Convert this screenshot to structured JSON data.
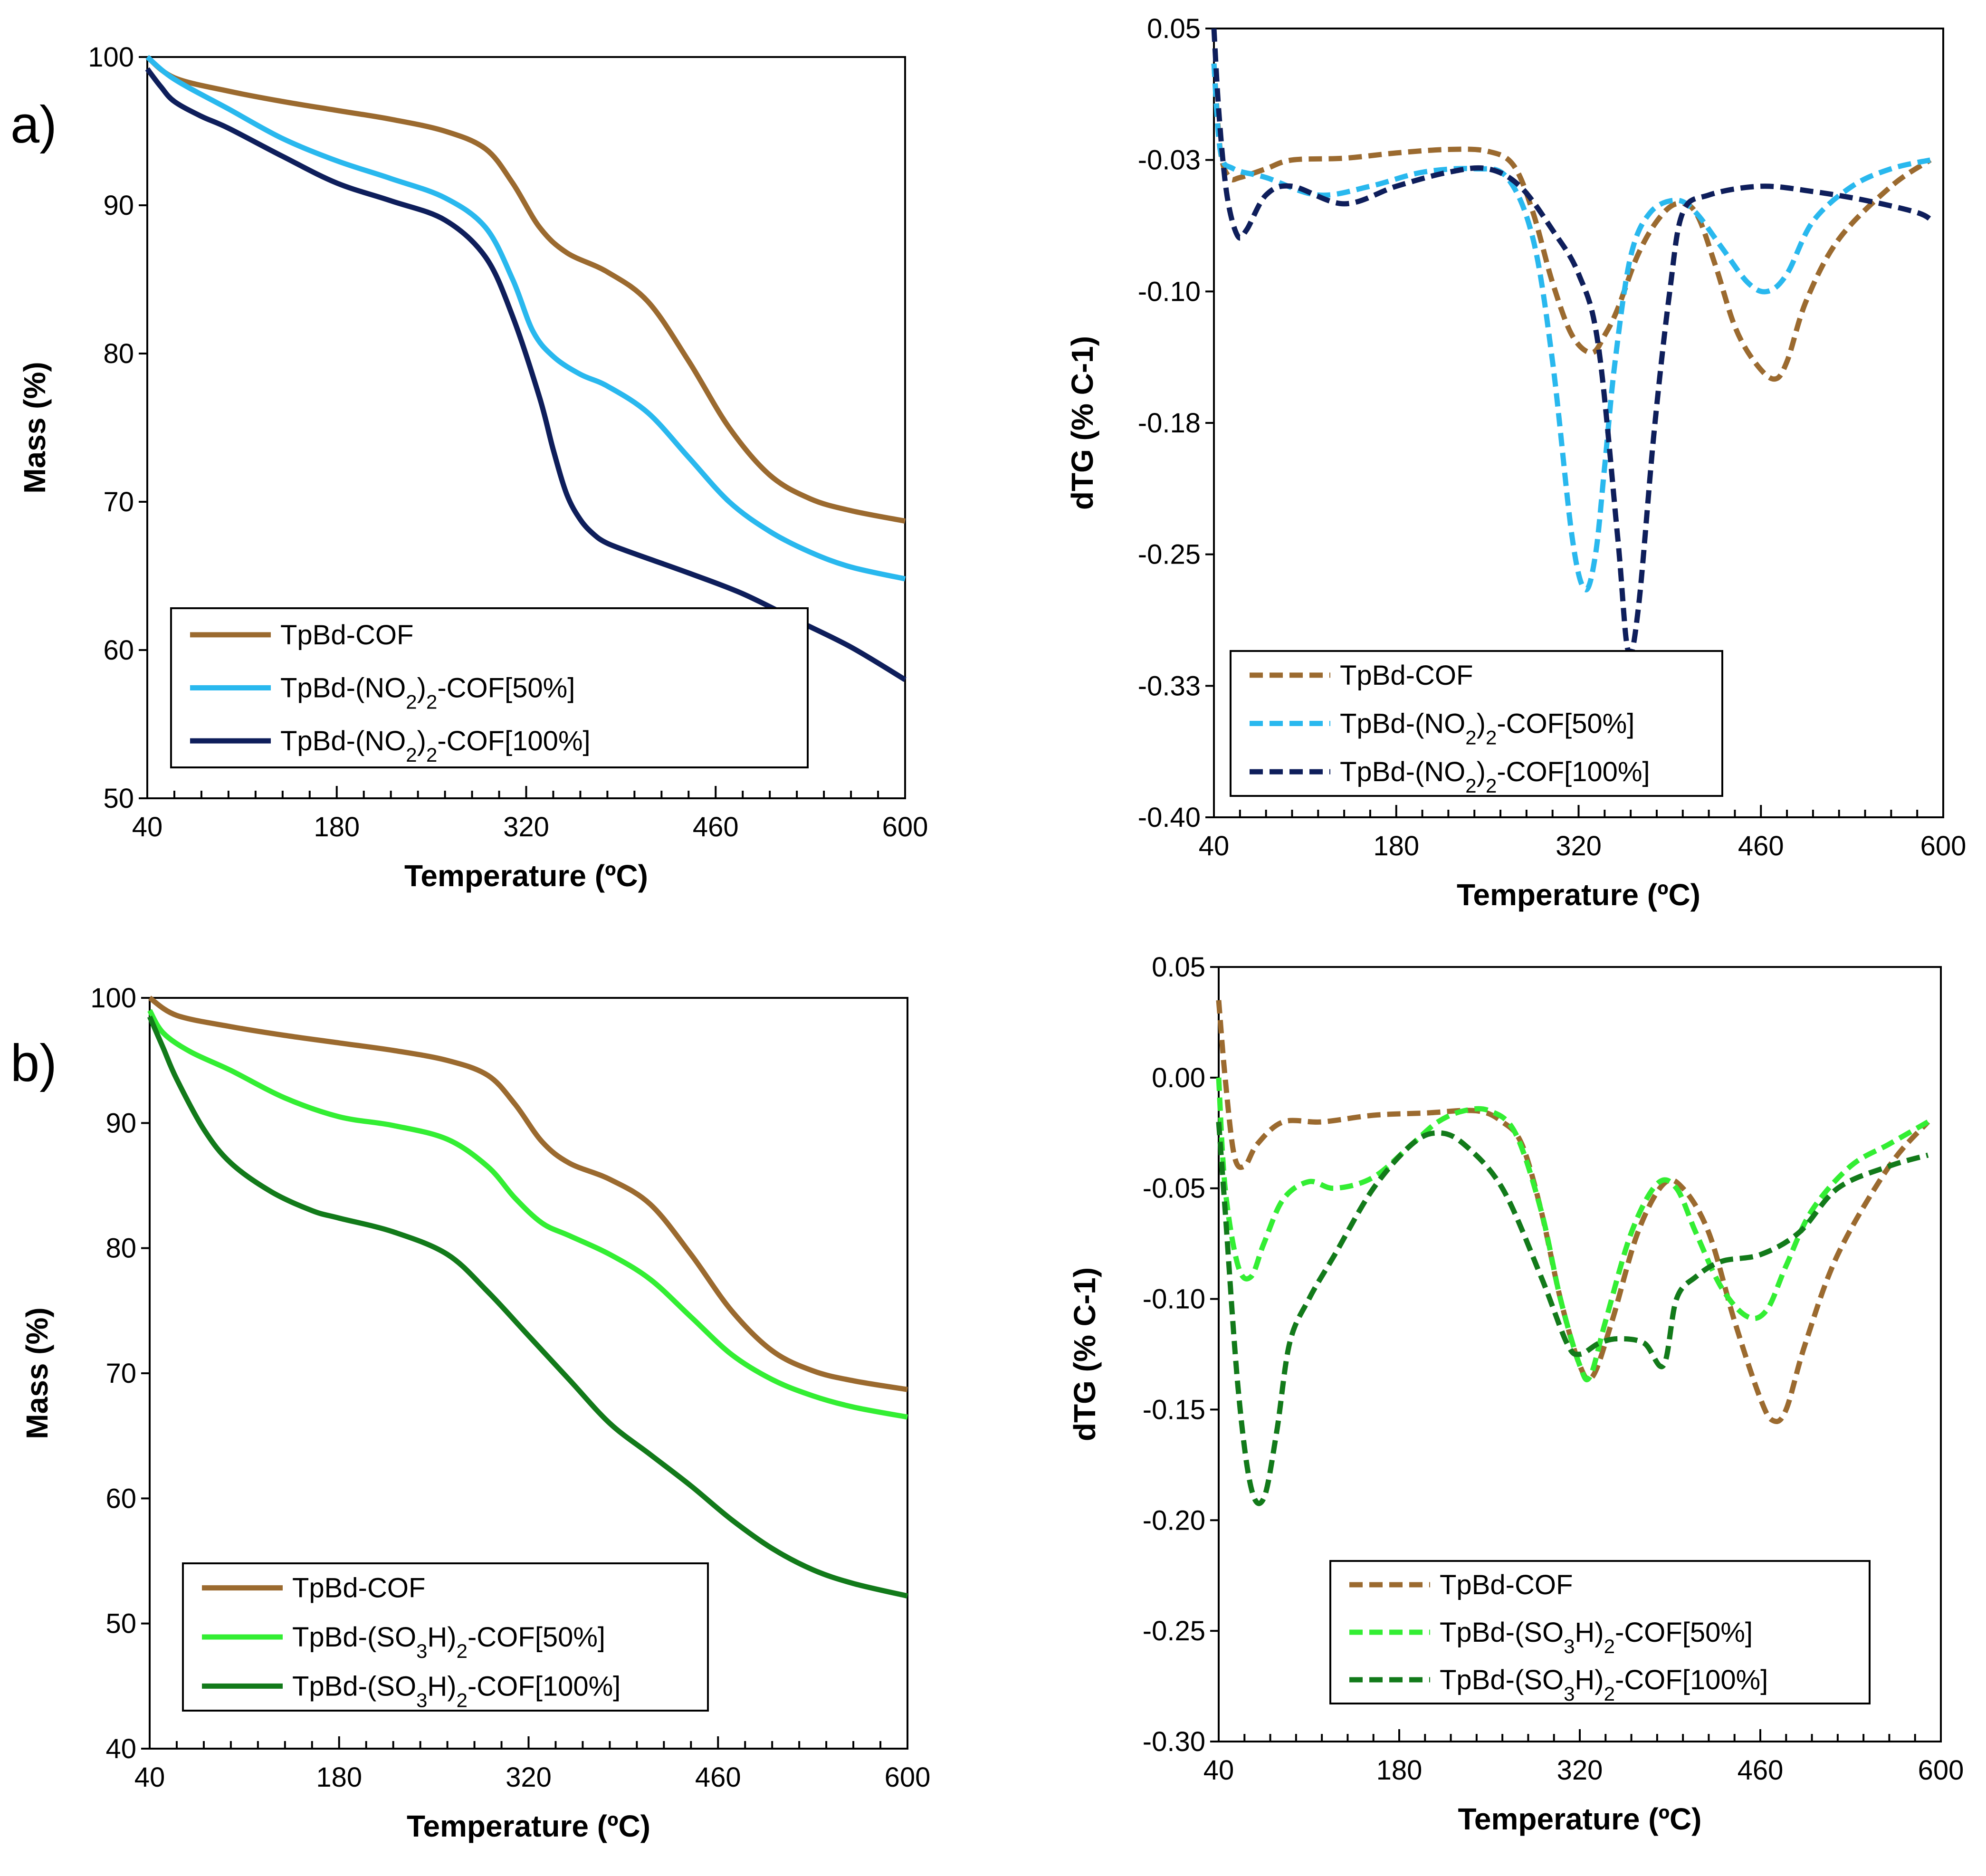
{
  "figure": {
    "panel_labels": [
      "a)",
      "b)"
    ]
  },
  "colors": {
    "tpbd": "#9B6A2F",
    "no2_50": "#29B8EE",
    "no2_100": "#0E1E5B",
    "so3h_50": "#33EE33",
    "so3h_100": "#127A1A"
  },
  "chart_data": [
    {
      "id": "a_tg",
      "type": "line",
      "style": "solid",
      "title": "",
      "xlabel": "Temperature (ºC)",
      "ylabel": "Mass (%)",
      "xlim": [
        40,
        600
      ],
      "ylim": [
        50,
        100
      ],
      "xticks": [
        40,
        180,
        320,
        460,
        600
      ],
      "yticks": [
        50,
        60,
        70,
        80,
        90,
        100
      ],
      "xtick_labels": [
        "40",
        "180",
        "320",
        "460",
        "600"
      ],
      "ytick_labels": [
        "50",
        "60",
        "70",
        "80",
        "90",
        "100"
      ],
      "legend_position": "bottom-left",
      "series": [
        {
          "name": "TpBd-COF",
          "color_key": "tpbd",
          "x": [
            40,
            60,
            100,
            140,
            180,
            220,
            260,
            290,
            310,
            330,
            350,
            380,
            410,
            440,
            470,
            500,
            530,
            560,
            600
          ],
          "y": [
            100,
            98.6,
            97.7,
            97.0,
            96.4,
            95.8,
            95.0,
            93.8,
            91.5,
            88.5,
            86.8,
            85.5,
            83.5,
            79.5,
            75.0,
            71.8,
            70.2,
            69.4,
            68.7
          ]
        },
        {
          "name": "TpBd-(NO₂)₂-COF[50%]",
          "color_key": "no2_50",
          "x": [
            40,
            60,
            100,
            140,
            180,
            220,
            260,
            290,
            310,
            325,
            340,
            360,
            380,
            410,
            440,
            470,
            500,
            530,
            560,
            600
          ],
          "y": [
            100,
            98.5,
            96.5,
            94.5,
            93.0,
            91.8,
            90.5,
            88.5,
            85.0,
            81.5,
            79.8,
            78.6,
            77.8,
            76.0,
            73.0,
            70.0,
            68.0,
            66.6,
            65.6,
            64.8
          ]
        },
        {
          "name": "TpBd-(NO₂)₂-COF[100%]",
          "color_key": "no2_100",
          "x": [
            40,
            50,
            60,
            80,
            100,
            140,
            180,
            220,
            260,
            290,
            310,
            330,
            340,
            350,
            360,
            370,
            380,
            400,
            440,
            480,
            520,
            560,
            600
          ],
          "y": [
            99.2,
            98.0,
            97.0,
            96.0,
            95.2,
            93.3,
            91.5,
            90.3,
            89.0,
            86.5,
            82.5,
            77.0,
            73.5,
            70.5,
            68.8,
            67.8,
            67.2,
            66.5,
            65.2,
            63.8,
            62.0,
            60.2,
            58.0
          ]
        }
      ]
    },
    {
      "id": "a_dtg",
      "type": "line",
      "style": "dashed",
      "title": "",
      "xlabel": "Temperature (ºC)",
      "ylabel": "dTG (% C-1)",
      "xlim": [
        40,
        600
      ],
      "ylim": [
        -0.4,
        0.05
      ],
      "xticks": [
        40,
        180,
        320,
        460,
        600
      ],
      "yticks": [
        -0.4,
        -0.325,
        -0.25,
        -0.175,
        -0.1,
        -0.025,
        0.05
      ],
      "xtick_labels": [
        "40",
        "180",
        "320",
        "460",
        "600"
      ],
      "ytick_labels": [
        "-0.40",
        "-0.33",
        "-0.25",
        "-0.18",
        "-0.10",
        "-0.03",
        "0.05"
      ],
      "legend_position": "bottom-left",
      "series": [
        {
          "name": "TpBd-COF",
          "color_key": "tpbd",
          "x": [
            40,
            45,
            52,
            60,
            80,
            100,
            140,
            180,
            220,
            250,
            270,
            285,
            300,
            315,
            330,
            340,
            350,
            365,
            380,
            395,
            410,
            425,
            440,
            455,
            470,
            480,
            495,
            520,
            560,
            590
          ],
          "y": [
            0.03,
            -0.02,
            -0.035,
            -0.035,
            -0.03,
            -0.025,
            -0.024,
            -0.021,
            -0.019,
            -0.02,
            -0.028,
            -0.055,
            -0.095,
            -0.125,
            -0.135,
            -0.125,
            -0.11,
            -0.08,
            -0.06,
            -0.05,
            -0.055,
            -0.085,
            -0.12,
            -0.14,
            -0.15,
            -0.14,
            -0.105,
            -0.07,
            -0.04,
            -0.025
          ]
        },
        {
          "name": "TpBd-(NO₂)₂-COF[50%]",
          "color_key": "no2_50",
          "x": [
            40,
            45,
            55,
            80,
            120,
            160,
            200,
            240,
            265,
            285,
            300,
            315,
            325,
            333,
            340,
            348,
            360,
            375,
            395,
            410,
            430,
            450,
            465,
            480,
            500,
            530,
            560,
            590
          ],
          "y": [
            0.03,
            -0.02,
            -0.03,
            -0.035,
            -0.045,
            -0.04,
            -0.032,
            -0.03,
            -0.035,
            -0.07,
            -0.14,
            -0.24,
            -0.27,
            -0.25,
            -0.2,
            -0.14,
            -0.08,
            -0.055,
            -0.048,
            -0.055,
            -0.075,
            -0.095,
            -0.1,
            -0.09,
            -0.06,
            -0.04,
            -0.03,
            -0.025
          ]
        },
        {
          "name": "TpBd-(NO₂)₂-COF[100%]",
          "color_key": "no2_100",
          "x": [
            40,
            44,
            50,
            58,
            65,
            80,
            100,
            140,
            180,
            220,
            250,
            275,
            300,
            320,
            335,
            350,
            358,
            366,
            378,
            390,
            400,
            420,
            460,
            500,
            540,
            580,
            592
          ],
          "y": [
            0.05,
            0.0,
            -0.045,
            -0.068,
            -0.065,
            -0.045,
            -0.04,
            -0.05,
            -0.04,
            -0.032,
            -0.03,
            -0.04,
            -0.065,
            -0.09,
            -0.13,
            -0.24,
            -0.305,
            -0.28,
            -0.18,
            -0.1,
            -0.055,
            -0.045,
            -0.04,
            -0.043,
            -0.048,
            -0.055,
            -0.06
          ]
        }
      ]
    },
    {
      "id": "b_tg",
      "type": "line",
      "style": "solid",
      "title": "",
      "xlabel": "Temperature (ºC)",
      "ylabel": "Mass (%)",
      "xlim": [
        40,
        600
      ],
      "ylim": [
        40,
        100
      ],
      "xticks": [
        40,
        180,
        320,
        460,
        600
      ],
      "yticks": [
        40,
        50,
        60,
        70,
        80,
        90,
        100
      ],
      "xtick_labels": [
        "40",
        "180",
        "320",
        "460",
        "600"
      ],
      "ytick_labels": [
        "40",
        "50",
        "60",
        "70",
        "80",
        "90",
        "100"
      ],
      "legend_position": "bottom-left",
      "series": [
        {
          "name": "TpBd-COF",
          "color_key": "tpbd",
          "x": [
            40,
            60,
            100,
            140,
            180,
            220,
            260,
            290,
            310,
            330,
            350,
            380,
            410,
            440,
            470,
            500,
            530,
            560,
            600
          ],
          "y": [
            100,
            98.6,
            97.7,
            97.0,
            96.4,
            95.8,
            95.0,
            93.8,
            91.5,
            88.5,
            86.8,
            85.5,
            83.5,
            79.5,
            75.0,
            71.8,
            70.2,
            69.4,
            68.7
          ]
        },
        {
          "name": "TpBd-(SO₃H)₂-COF[50%]",
          "color_key": "so3h_50",
          "x": [
            40,
            50,
            70,
            100,
            140,
            180,
            220,
            260,
            290,
            310,
            330,
            350,
            380,
            410,
            440,
            470,
            500,
            530,
            560,
            600
          ],
          "y": [
            99,
            97.2,
            95.7,
            94.2,
            92.0,
            90.5,
            89.8,
            88.7,
            86.5,
            84.0,
            82.0,
            81.0,
            79.5,
            77.5,
            74.5,
            71.5,
            69.5,
            68.2,
            67.3,
            66.5
          ]
        },
        {
          "name": "TpBd-(SO₃H)₂-COF[100%]",
          "color_key": "so3h_100",
          "x": [
            40,
            50,
            60,
            80,
            100,
            130,
            160,
            180,
            220,
            260,
            290,
            320,
            350,
            380,
            410,
            440,
            470,
            500,
            530,
            560,
            600
          ],
          "y": [
            98.5,
            96,
            93.5,
            89.5,
            86.8,
            84.5,
            83.0,
            82.4,
            81.3,
            79.5,
            76.5,
            73.0,
            69.5,
            66.0,
            63.5,
            61.0,
            58.3,
            56.0,
            54.3,
            53.2,
            52.2
          ]
        }
      ]
    },
    {
      "id": "b_dtg",
      "type": "line",
      "style": "dashed",
      "title": "",
      "xlabel": "Temperature (ºC)",
      "ylabel": "dTG (% C-1)",
      "xlim": [
        40,
        600
      ],
      "ylim": [
        -0.3,
        0.05
      ],
      "xticks": [
        40,
        180,
        320,
        460,
        600
      ],
      "yticks": [
        -0.3,
        -0.25,
        -0.2,
        -0.15,
        -0.1,
        -0.05,
        0.0,
        0.05
      ],
      "xtick_labels": [
        "40",
        "180",
        "320",
        "460",
        "600"
      ],
      "ytick_labels": [
        "-0.30",
        "-0.25",
        "-0.20",
        "-0.15",
        "-0.10",
        "-0.05",
        "0.00",
        "0.05"
      ],
      "legend_position": "bottom-left",
      "series": [
        {
          "name": "TpBd-COF",
          "color_key": "tpbd",
          "x": [
            40,
            45,
            52,
            60,
            70,
            90,
            120,
            160,
            200,
            240,
            260,
            275,
            290,
            305,
            320,
            330,
            345,
            365,
            385,
            400,
            420,
            440,
            460,
            470,
            480,
            495,
            520,
            560,
            590
          ],
          "y": [
            0.035,
            0.0,
            -0.035,
            -0.04,
            -0.03,
            -0.02,
            -0.02,
            -0.017,
            -0.016,
            -0.015,
            -0.02,
            -0.03,
            -0.06,
            -0.1,
            -0.13,
            -0.135,
            -0.11,
            -0.07,
            -0.048,
            -0.05,
            -0.07,
            -0.11,
            -0.145,
            -0.155,
            -0.15,
            -0.12,
            -0.08,
            -0.04,
            -0.02
          ]
        },
        {
          "name": "TpBd-(SO₃H)₂-COF[50%]",
          "color_key": "so3h_50",
          "x": [
            40,
            45,
            55,
            65,
            75,
            90,
            110,
            130,
            160,
            190,
            210,
            230,
            250,
            270,
            290,
            305,
            320,
            328,
            340,
            360,
            380,
            395,
            410,
            430,
            450,
            465,
            480,
            500,
            530,
            560,
            590
          ],
          "y": [
            0.0,
            -0.05,
            -0.085,
            -0.09,
            -0.075,
            -0.055,
            -0.047,
            -0.05,
            -0.045,
            -0.03,
            -0.02,
            -0.015,
            -0.015,
            -0.025,
            -0.06,
            -0.1,
            -0.13,
            -0.135,
            -0.11,
            -0.07,
            -0.048,
            -0.05,
            -0.07,
            -0.095,
            -0.108,
            -0.105,
            -0.085,
            -0.06,
            -0.04,
            -0.03,
            -0.02
          ]
        },
        {
          "name": "TpBd-(SO₃H)₂-COF[100%]",
          "color_key": "so3h_100",
          "x": [
            40,
            45,
            55,
            65,
            75,
            85,
            95,
            110,
            130,
            160,
            190,
            210,
            230,
            260,
            290,
            310,
            320,
            335,
            350,
            370,
            385,
            395,
            410,
            430,
            460,
            490,
            520,
            560,
            590
          ],
          "y": [
            -0.02,
            -0.06,
            -0.14,
            -0.185,
            -0.19,
            -0.16,
            -0.12,
            -0.1,
            -0.08,
            -0.05,
            -0.03,
            -0.025,
            -0.03,
            -0.05,
            -0.09,
            -0.12,
            -0.125,
            -0.12,
            -0.118,
            -0.12,
            -0.13,
            -0.1,
            -0.09,
            -0.083,
            -0.08,
            -0.07,
            -0.05,
            -0.04,
            -0.035
          ]
        }
      ]
    }
  ]
}
